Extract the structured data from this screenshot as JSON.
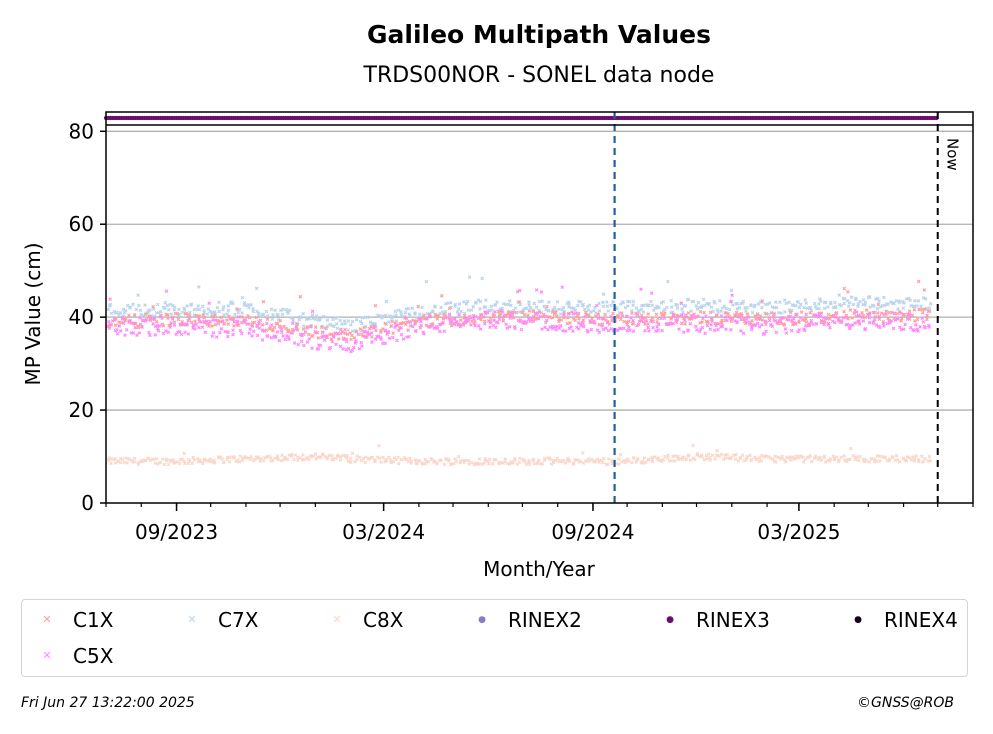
{
  "chart_data": {
    "type": "scatter",
    "title": "Galileo Multipath Values",
    "subtitle": "TRDS00NOR - SONEL data node",
    "xlabel": "Month/Year",
    "ylabel": "MP Value (cm)",
    "ylim": [
      0,
      82
    ],
    "xlim": [
      "2023-07-01",
      "2025-08-01"
    ],
    "yticks": [
      0,
      20,
      40,
      60,
      80
    ],
    "xticks": [
      {
        "date": "2023-09-01",
        "label": "09/2023"
      },
      {
        "date": "2024-03-01",
        "label": "03/2024"
      },
      {
        "date": "2024-09-01",
        "label": "09/2024"
      },
      {
        "date": "2025-03-01",
        "label": "03/2025"
      }
    ],
    "grid": "horizontal",
    "vertical_marker_date": "2024-09-20",
    "now_date": "2025-07-01",
    "now_label": "Now",
    "series": [
      {
        "name": "C1X",
        "color": "#ff9e9e",
        "marker": "x",
        "points": [
          [
            "2023-07-15",
            39
          ],
          [
            "2023-09-01",
            39.5
          ],
          [
            "2023-11-01",
            39
          ],
          [
            "2024-01-01",
            37
          ],
          [
            "2024-02-01",
            36
          ],
          [
            "2024-04-01",
            39
          ],
          [
            "2024-06-01",
            40
          ],
          [
            "2024-08-01",
            40
          ],
          [
            "2024-10-01",
            39.5
          ],
          [
            "2024-12-01",
            40
          ],
          [
            "2025-02-01",
            39.5
          ],
          [
            "2025-04-01",
            40
          ],
          [
            "2025-06-01",
            40.5
          ]
        ]
      },
      {
        "name": "C7X",
        "color": "#b8d4ec",
        "marker": "x",
        "points": [
          [
            "2023-07-15",
            41.5
          ],
          [
            "2023-09-01",
            41.5
          ],
          [
            "2023-11-01",
            42
          ],
          [
            "2024-01-01",
            39
          ],
          [
            "2024-02-01",
            38
          ],
          [
            "2024-04-01",
            41
          ],
          [
            "2024-06-01",
            42.5
          ],
          [
            "2024-08-01",
            42
          ],
          [
            "2024-10-01",
            42
          ],
          [
            "2024-12-01",
            42.5
          ],
          [
            "2025-02-01",
            42
          ],
          [
            "2025-04-01",
            43
          ],
          [
            "2025-06-01",
            43
          ]
        ]
      },
      {
        "name": "C8X",
        "color": "#fad6c8",
        "marker": "x",
        "points": [
          [
            "2023-07-15",
            9
          ],
          [
            "2023-09-01",
            9
          ],
          [
            "2023-11-01",
            9.5
          ],
          [
            "2024-01-01",
            10
          ],
          [
            "2024-02-01",
            9.5
          ],
          [
            "2024-04-01",
            9
          ],
          [
            "2024-06-01",
            9
          ],
          [
            "2024-08-01",
            9
          ],
          [
            "2024-10-01",
            9
          ],
          [
            "2024-12-01",
            10
          ],
          [
            "2025-02-01",
            9.5
          ],
          [
            "2025-04-01",
            9.5
          ],
          [
            "2025-06-01",
            9.5
          ]
        ]
      },
      {
        "name": "RINEX2",
        "color": "#8a7cc2",
        "marker": "dot",
        "points": []
      },
      {
        "name": "RINEX3",
        "color": "#6b0f6b",
        "marker": "dot",
        "y_level": 81.5,
        "date_range": [
          "2023-07-01",
          "2025-06-30"
        ]
      },
      {
        "name": "RINEX4",
        "color": "#14001e",
        "marker": "dot",
        "points": []
      },
      {
        "name": "C5X",
        "color": "#ff88ff",
        "marker": "x",
        "points": [
          [
            "2023-07-15",
            38
          ],
          [
            "2023-09-01",
            38
          ],
          [
            "2023-11-01",
            37.5
          ],
          [
            "2024-01-01",
            35
          ],
          [
            "2024-02-01",
            34.5
          ],
          [
            "2024-04-01",
            38
          ],
          [
            "2024-06-01",
            39.5
          ],
          [
            "2024-08-01",
            39
          ],
          [
            "2024-10-01",
            38.5
          ],
          [
            "2024-12-01",
            38.5
          ],
          [
            "2025-02-01",
            38
          ],
          [
            "2025-04-01",
            39.5
          ],
          [
            "2025-06-01",
            39
          ]
        ]
      }
    ]
  },
  "footer": {
    "timestamp": "Fri Jun 27 13:22:00 2025",
    "credit": "©GNSS@ROB"
  }
}
